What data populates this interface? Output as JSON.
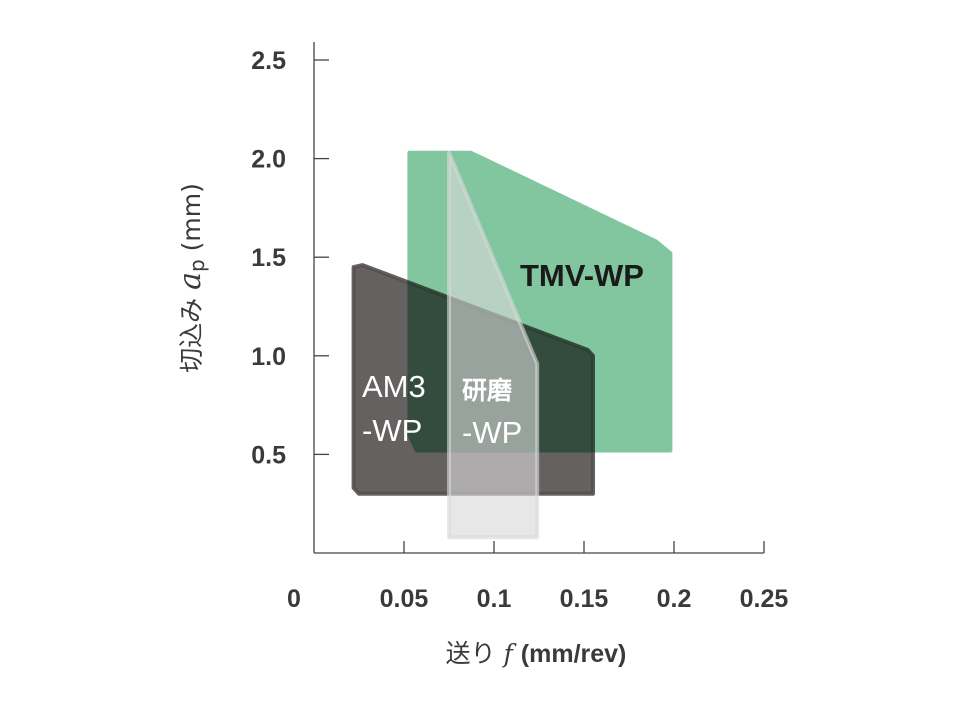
{
  "chart_data": {
    "type": "area",
    "title": "",
    "xlabel": "送り f (mm/rev)",
    "xlabel_parts": [
      "送り",
      "f",
      "(mm/rev)"
    ],
    "ylabel": "切込み ap (mm)",
    "ylabel_parts": [
      "切込み",
      "a",
      "p",
      "(mm)"
    ],
    "xlim": [
      0,
      0.25
    ],
    "ylim": [
      0,
      2.5
    ],
    "x_ticks": [
      0,
      0.05,
      0.1,
      0.15,
      0.2,
      0.25
    ],
    "x_tick_labels": [
      "0",
      "0.05",
      "0.1",
      "0.15",
      "0.2",
      "0.25"
    ],
    "y_ticks": [
      0.5,
      1.0,
      1.5,
      2.0,
      2.5
    ],
    "y_tick_labels": [
      "0.5",
      "1.0",
      "1.5",
      "2.0",
      "2.5"
    ],
    "grid": false,
    "series": [
      {
        "name": "TMV-WP",
        "label_lines": [
          "TMV-WP"
        ],
        "color": "#82c6a0",
        "polygon": [
          [
            0.053,
            2.03
          ],
          [
            0.087,
            2.03
          ],
          [
            0.094,
            2.0
          ],
          [
            0.19,
            1.58
          ],
          [
            0.198,
            1.52
          ],
          [
            0.198,
            0.52
          ],
          [
            0.057,
            0.52
          ],
          [
            0.053,
            0.6
          ]
        ]
      },
      {
        "name": "AM3-WP",
        "label_lines": [
          "AM3",
          "-WP"
        ],
        "color": "#555050",
        "polygon": [
          [
            0.022,
            1.45
          ],
          [
            0.027,
            1.46
          ],
          [
            0.152,
            1.03
          ],
          [
            0.155,
            1.0
          ],
          [
            0.155,
            0.3
          ],
          [
            0.025,
            0.3
          ],
          [
            0.022,
            0.33
          ]
        ]
      },
      {
        "name": "研磨-WP",
        "label_lines": [
          "研磨",
          "-WP"
        ],
        "color": "#d8d8d8",
        "polygon": [
          [
            0.075,
            2.03
          ],
          [
            0.124,
            0.96
          ],
          [
            0.124,
            0.08
          ],
          [
            0.075,
            0.08
          ]
        ]
      }
    ]
  }
}
